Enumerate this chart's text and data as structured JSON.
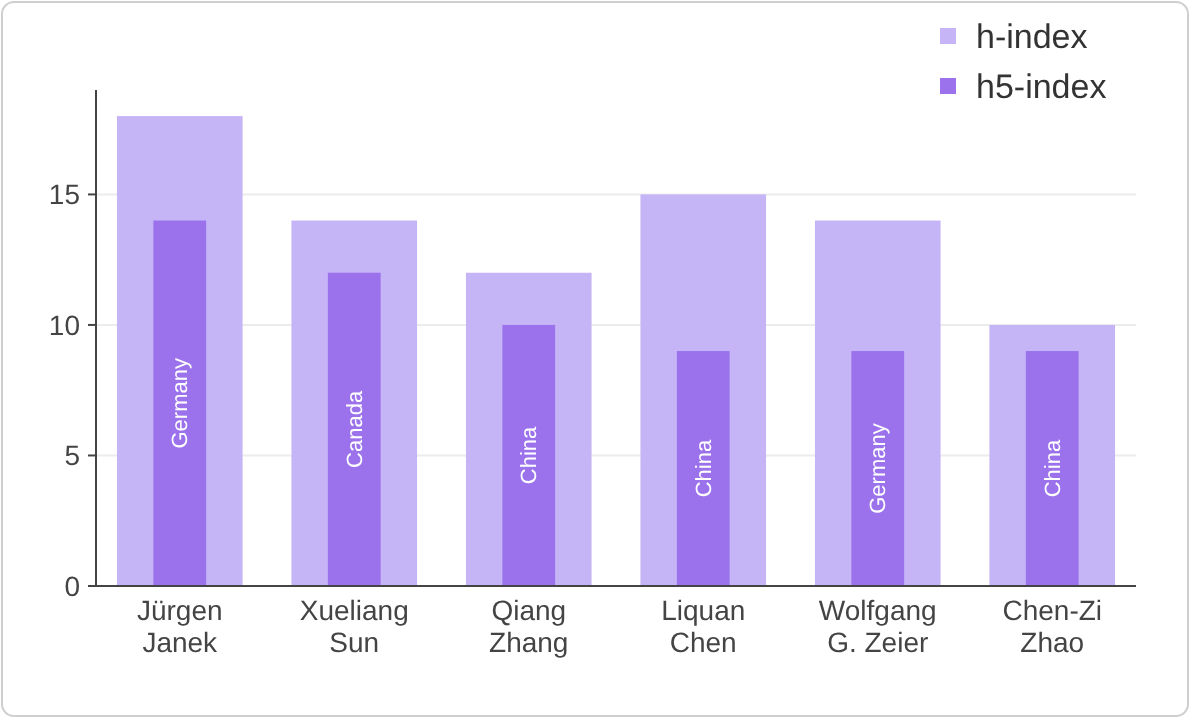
{
  "chart_data": {
    "type": "bar",
    "categories": [
      "Jürgen Janek",
      "Xueliang Sun",
      "Qiang Zhang",
      "Liquan Chen",
      "Wolfgang G. Zeier",
      "Chen-Zi Zhao"
    ],
    "series": [
      {
        "name": "h-index",
        "color": "#c5b4f6",
        "values": [
          18,
          14,
          12,
          15,
          14,
          10
        ]
      },
      {
        "name": "h5-index",
        "color": "#9b72ec",
        "values": [
          14,
          12,
          10,
          9,
          9,
          9
        ]
      }
    ],
    "ylim": [
      0,
      19
    ],
    "yticks": [
      0,
      5,
      10,
      15
    ],
    "grid": "y",
    "legend": "top right",
    "annotations": [
      "Germany",
      "Canada",
      "China",
      "China",
      "Germany",
      "China"
    ]
  }
}
